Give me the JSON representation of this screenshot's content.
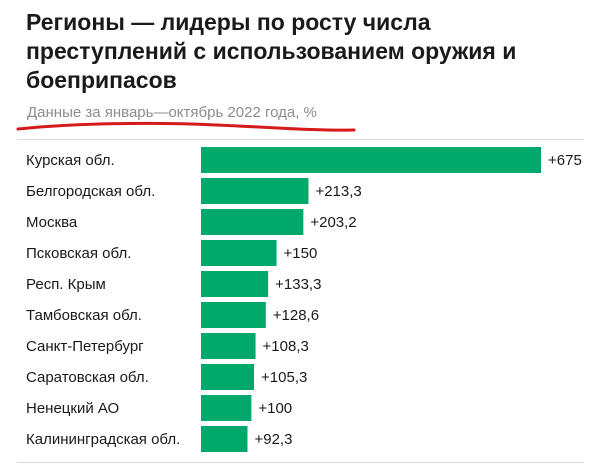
{
  "title": "Регионы — лидеры по росту числа преступлений с использованием оружия и боеприпасов",
  "subtitle": "Данные за январь—октябрь 2022 года, %",
  "colors": {
    "bar": "#00a86b",
    "text": "#1a1a1a",
    "subtitle": "#8c8c8c",
    "underline": "#d61a1a"
  },
  "chart_data": {
    "type": "bar",
    "orientation": "horizontal",
    "title": "Регионы — лидеры по росту числа преступлений с использованием оружия и боеприпасов",
    "subtitle": "Данные за январь—октябрь 2022 года, %",
    "categories": [
      "Курская обл.",
      "Белгородская обл.",
      "Москва",
      "Псковская обл.",
      "Респ. Крым",
      "Тамбовская обл.",
      "Санкт-Петербург",
      "Саратовская обл.",
      "Ненецкий АО",
      "Калининградская обл."
    ],
    "values": [
      675,
      213.3,
      203.2,
      150,
      133.3,
      128.6,
      108.3,
      105.3,
      100,
      92.3
    ],
    "labels": [
      "+675",
      "+213,3",
      "+203,2",
      "+150",
      "+133,3",
      "+128,6",
      "+108,3",
      "+105,3",
      "+100",
      "+92,3"
    ],
    "xlim": [
      0,
      675
    ],
    "grid": false,
    "legend": "none"
  }
}
